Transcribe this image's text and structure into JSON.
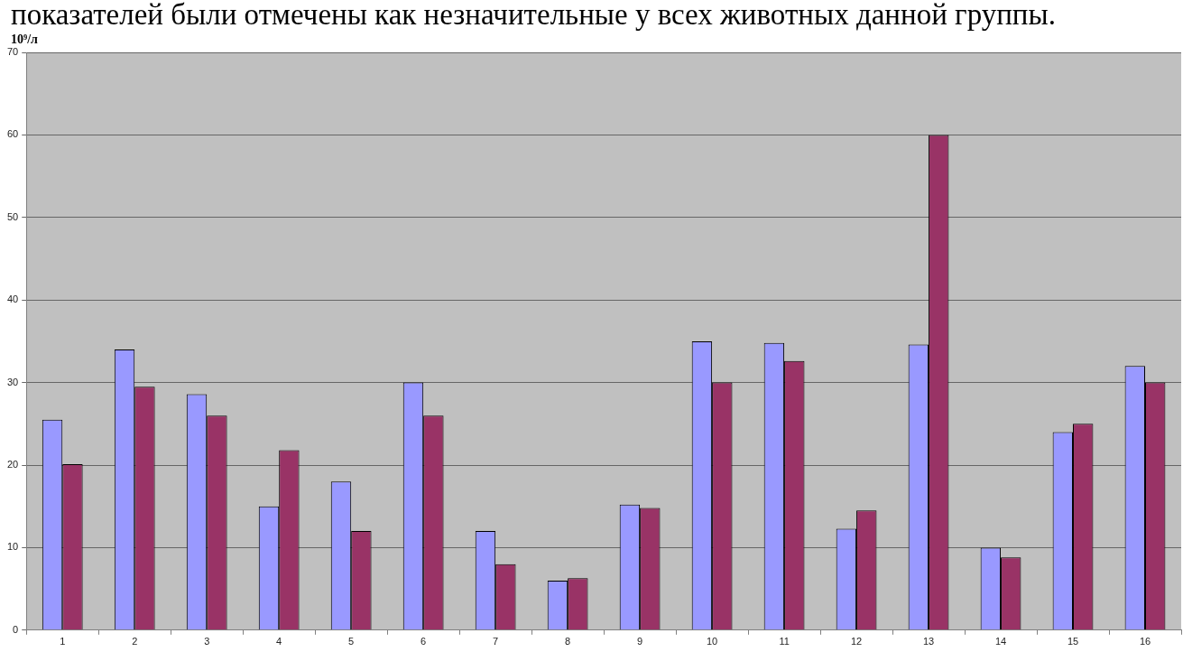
{
  "chart_data": {
    "type": "bar",
    "annotations": [
      "показателей были отмечены как незначительные у всех животных данной группы."
    ],
    "ylabel": "10⁹/л",
    "categories": [
      "1",
      "2",
      "3",
      "4",
      "5",
      "6",
      "7",
      "8",
      "9",
      "10",
      "11",
      "12",
      "13",
      "14",
      "15",
      "16"
    ],
    "series": [
      {
        "color": "#9999ff",
        "values": [
          25.5,
          34,
          28.6,
          15,
          18,
          30,
          12,
          6,
          15.2,
          35,
          34.8,
          12.3,
          34.6,
          10,
          24,
          32
        ]
      },
      {
        "color": "#993366",
        "values": [
          20.1,
          29.5,
          26,
          21.8,
          12,
          26,
          8,
          6.3,
          14.8,
          30,
          32.6,
          14.5,
          60,
          8.8,
          25,
          30
        ]
      }
    ],
    "ylim": [
      0,
      70
    ],
    "yticks": [
      0,
      10,
      20,
      30,
      40,
      50,
      60,
      70
    ],
    "grid": "y"
  }
}
